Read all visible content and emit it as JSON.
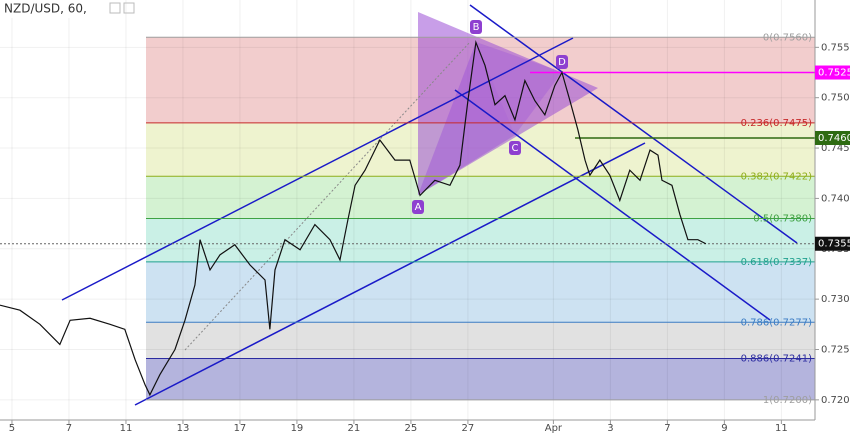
{
  "chart_data": {
    "type": "line",
    "title": "NZD/USD, 60,",
    "xlim": [
      -0.42,
      28.18
    ],
    "ylim": [
      0.718,
      0.7597
    ],
    "xticks": [
      {
        "value": 0,
        "label": "5"
      },
      {
        "value": 2,
        "label": "7"
      },
      {
        "value": 4,
        "label": "11"
      },
      {
        "value": 6,
        "label": "13"
      },
      {
        "value": 8,
        "label": "17"
      },
      {
        "value": 10,
        "label": "19"
      },
      {
        "value": 12,
        "label": "21"
      },
      {
        "value": 14,
        "label": "25"
      },
      {
        "value": 16,
        "label": "27"
      },
      {
        "value": 19,
        "label": "Apr"
      },
      {
        "value": 21,
        "label": "3"
      },
      {
        "value": 23,
        "label": "7"
      },
      {
        "value": 25,
        "label": "9"
      },
      {
        "value": 27,
        "label": "11"
      }
    ],
    "yticks": [
      {
        "value": 0.72,
        "label": "0.7200"
      },
      {
        "value": 0.725,
        "label": "0.7250"
      },
      {
        "value": 0.73,
        "label": "0.7300"
      },
      {
        "value": 0.735,
        "label": "0.7350"
      },
      {
        "value": 0.74,
        "label": "0.7400"
      },
      {
        "value": 0.745,
        "label": "0.7450"
      },
      {
        "value": 0.75,
        "label": "0.7500"
      },
      {
        "value": 0.755,
        "label": "0.7550"
      }
    ],
    "grid": true,
    "series": [
      {
        "name": "NZD/USD",
        "color": "#111111",
        "x": [
          -0.42,
          0.28,
          0.98,
          1.68,
          2.04,
          2.74,
          3.44,
          3.96,
          4.32,
          4.67,
          4.84,
          5.19,
          5.72,
          6.07,
          6.42,
          6.6,
          6.95,
          7.3,
          7.82,
          8.35,
          8.88,
          9.05,
          9.23,
          9.58,
          10.11,
          10.63,
          11.16,
          11.51,
          11.79,
          12.04,
          12.39,
          12.91,
          13.44,
          13.96,
          14.32,
          14.84,
          15.37,
          15.72,
          16.0,
          16.28,
          16.6,
          16.95,
          17.3,
          17.65,
          18.0,
          18.35,
          18.7,
          19.05,
          19.3,
          19.58,
          19.86,
          20.11,
          20.28,
          20.63,
          20.98,
          21.33,
          21.68,
          22.04,
          22.39,
          22.67,
          22.81,
          23.16,
          23.44,
          23.72,
          24.07,
          24.35
        ],
        "values": [
          0.7294,
          0.7289,
          0.7275,
          0.7255,
          0.7279,
          0.7281,
          0.7275,
          0.727,
          0.724,
          0.7215,
          0.7205,
          0.7225,
          0.725,
          0.7279,
          0.7314,
          0.7359,
          0.7329,
          0.7344,
          0.7354,
          0.7334,
          0.7319,
          0.727,
          0.7329,
          0.7359,
          0.7349,
          0.7374,
          0.7359,
          0.7339,
          0.7379,
          0.7413,
          0.7428,
          0.7458,
          0.7438,
          0.7438,
          0.7403,
          0.7418,
          0.7413,
          0.7433,
          0.7497,
          0.7555,
          0.7532,
          0.7493,
          0.7502,
          0.7478,
          0.7517,
          0.7497,
          0.7483,
          0.7512,
          0.7525,
          0.7497,
          0.7468,
          0.7438,
          0.7423,
          0.7438,
          0.7423,
          0.7398,
          0.7428,
          0.7418,
          0.7448,
          0.7443,
          0.7418,
          0.7413,
          0.7384,
          0.7359,
          0.7359,
          0.7355
        ]
      }
    ],
    "fib_levels": [
      {
        "value": 0.756,
        "label": "0(0.7560)",
        "color": "#9e9e9e",
        "fill": "#f2cdcd"
      },
      {
        "value": 0.7475,
        "label": "0.236(0.7475)",
        "color": "#c62828",
        "fill": "#eef3cf"
      },
      {
        "value": 0.7422,
        "label": "0.382(0.7422)",
        "color": "#8fae1b",
        "fill": "#d4f2d2"
      },
      {
        "value": 0.738,
        "label": "0.5(0.7380)",
        "color": "#3fa243",
        "fill": "#caf0e6"
      },
      {
        "value": 0.7337,
        "label": "0.618(0.7337)",
        "color": "#21a08f",
        "fill": "#cde2f2"
      },
      {
        "value": 0.7277,
        "label": "0.786(0.7277)",
        "color": "#3b7cc4",
        "fill": "#e1e1e1"
      },
      {
        "value": 0.7241,
        "label": "0.886(0.7241)",
        "color": "#2c2ca0",
        "fill": "#b4b4dd"
      },
      {
        "value": 0.72,
        "label": "1(0.7200)",
        "color": "#9e9e9e"
      }
    ],
    "price_lines": [
      {
        "value": 0.7525,
        "label": "0.7525",
        "color": "#ff00ff"
      },
      {
        "value": 0.746,
        "label": "0.7460",
        "color": "#2e6b12"
      },
      {
        "value": 0.7355,
        "label": "0.7355",
        "color": "#111111"
      }
    ],
    "pattern_labels": [
      "A",
      "B",
      "C",
      "D"
    ]
  }
}
